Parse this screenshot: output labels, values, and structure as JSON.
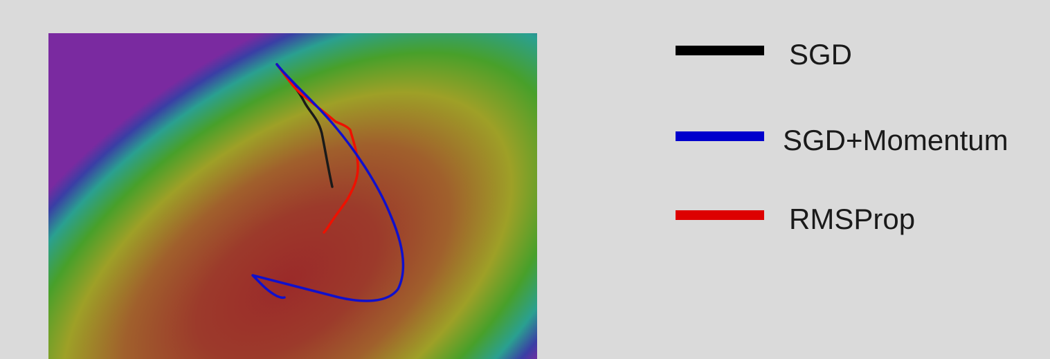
{
  "legend": {
    "items": [
      {
        "label": "SGD",
        "color": "#000000"
      },
      {
        "label": "SGD+Momentum",
        "color": "#0000cc"
      },
      {
        "label": "RMSProp",
        "color": "#dd0000"
      }
    ]
  },
  "surface": {
    "type": "loss-contour",
    "colormap": [
      "#7a2a9a",
      "#3a3aa0",
      "#2aa0a0",
      "#2a9a2a",
      "#9aa022",
      "#a06a2a",
      "#9a2a28"
    ]
  },
  "paths": [
    {
      "name": "SGD",
      "color": "#111111"
    },
    {
      "name": "SGD+Momentum",
      "color": "#1010cc"
    },
    {
      "name": "RMSProp",
      "color": "#ee1100"
    }
  ]
}
